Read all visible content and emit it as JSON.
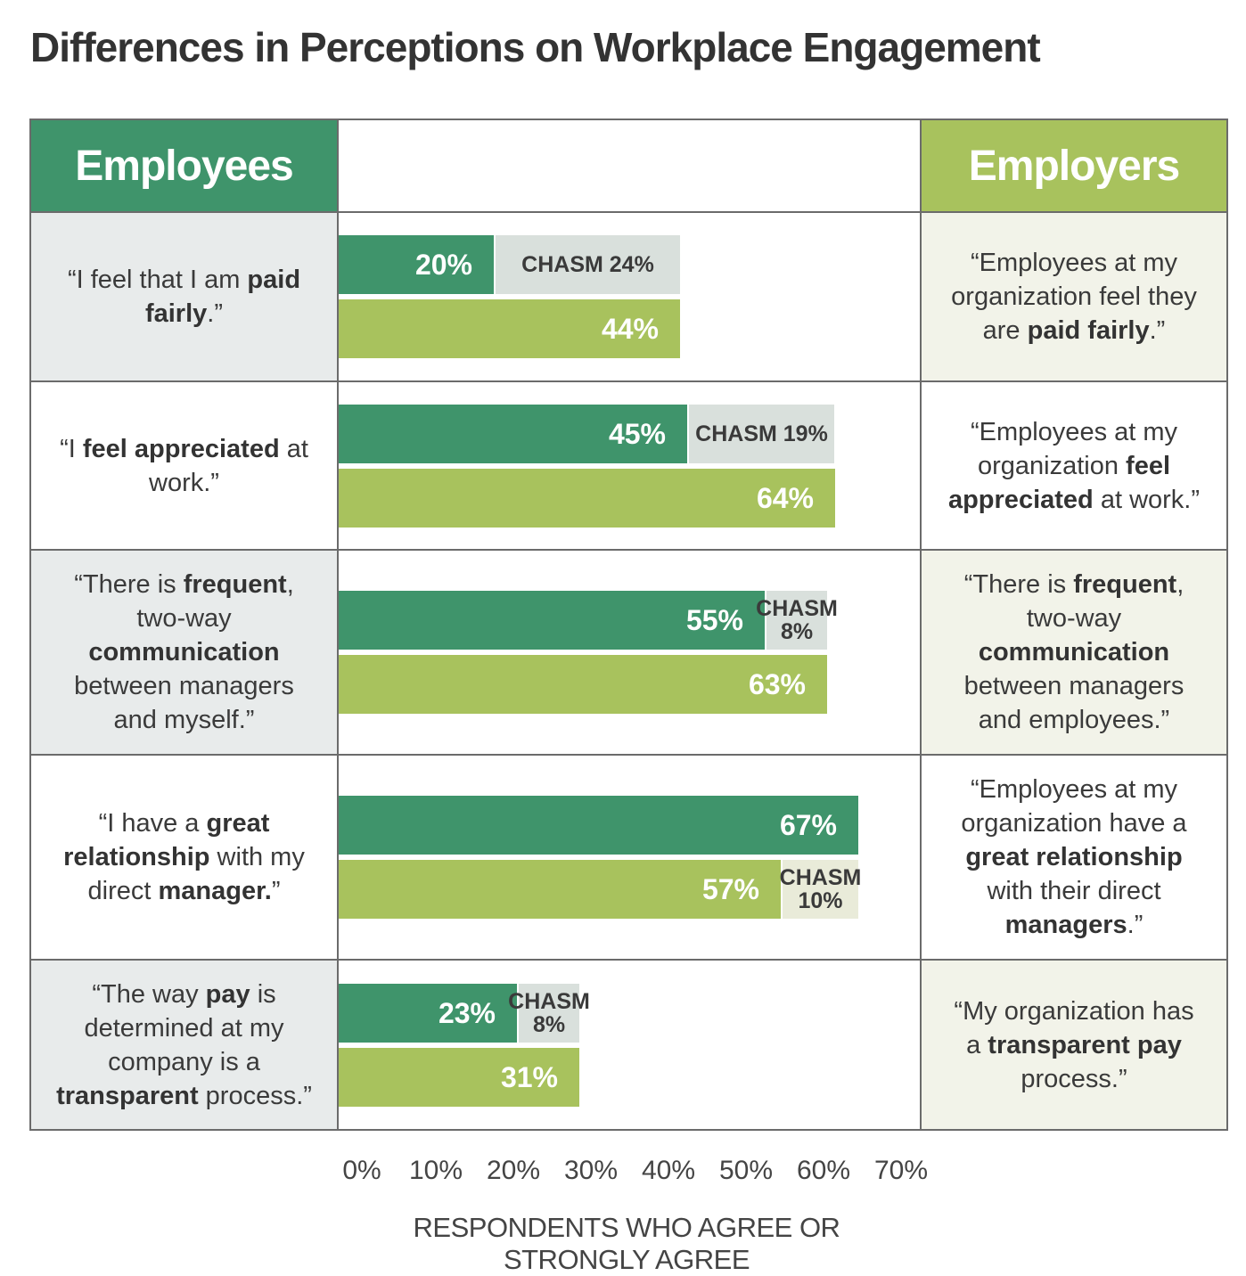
{
  "title": "Differences in Perceptions on Workplace Engagement",
  "headers": {
    "left": "Employees",
    "right": "Employers"
  },
  "colors": {
    "employees": "#3f946b",
    "employers": "#a8c25d",
    "chasm": "#d9e0dc"
  },
  "chart_data": {
    "type": "bar",
    "orientation": "horizontal",
    "xlabel": "RESPONDENTS WHO AGREE OR STRONGLY AGREE",
    "xlim": [
      0,
      70
    ],
    "xticks": [
      "0%",
      "10%",
      "20%",
      "30%",
      "40%",
      "50%",
      "60%",
      "70%"
    ],
    "series": [
      {
        "name": "Employees",
        "values": [
          20,
          45,
          55,
          67,
          23
        ]
      },
      {
        "name": "Employers",
        "values": [
          44,
          64,
          63,
          57,
          31
        ]
      }
    ],
    "rows": [
      {
        "employee": [
          [
            "“I feel that I am ",
            false
          ],
          [
            "paid fairly",
            true
          ],
          [
            ".”",
            false
          ]
        ],
        "employer": [
          [
            "“Employees at my organization feel they are ",
            false
          ],
          [
            "paid fairly",
            true
          ],
          [
            ".”",
            false
          ]
        ],
        "emp_value": 20,
        "emp_label": "20%",
        "emr_value": 44,
        "emr_label": "44%",
        "chasm_on": "employees",
        "chasm_lines": [
          "CHASM 24%"
        ]
      },
      {
        "employee": [
          [
            "“I ",
            false
          ],
          [
            "feel appreciated",
            true
          ],
          [
            " at work.”",
            false
          ]
        ],
        "employer": [
          [
            "“Employees at my organization ",
            false
          ],
          [
            "feel appreciated",
            true
          ],
          [
            " at work.”",
            false
          ]
        ],
        "emp_value": 45,
        "emp_label": "45%",
        "emr_value": 64,
        "emr_label": "64%",
        "chasm_on": "employees",
        "chasm_lines": [
          "CHASM 19%"
        ]
      },
      {
        "employee": [
          [
            "“There is ",
            false
          ],
          [
            "frequent",
            true
          ],
          [
            ", two-way ",
            false
          ],
          [
            "communication",
            true
          ],
          [
            " between managers and myself.”",
            false
          ]
        ],
        "employer": [
          [
            "“There is ",
            false
          ],
          [
            "frequent",
            true
          ],
          [
            ", two-way ",
            false
          ],
          [
            "communication",
            true
          ],
          [
            " between managers and employees.”",
            false
          ]
        ],
        "emp_value": 55,
        "emp_label": "55%",
        "emr_value": 63,
        "emr_label": "63%",
        "chasm_on": "employees",
        "chasm_lines": [
          "CHASM",
          "8%"
        ]
      },
      {
        "employee": [
          [
            "“I have a ",
            false
          ],
          [
            "great relationship",
            true
          ],
          [
            " with my direct ",
            false
          ],
          [
            "manager.",
            true
          ],
          [
            "”",
            false
          ]
        ],
        "employer": [
          [
            "“Employees at my organization have a ",
            false
          ],
          [
            "great relationship",
            true
          ],
          [
            " with their direct ",
            false
          ],
          [
            "managers",
            true
          ],
          [
            ".”",
            false
          ]
        ],
        "emp_value": 67,
        "emp_label": "67%",
        "emr_value": 57,
        "emr_label": "57%",
        "chasm_on": "employers",
        "chasm_lines": [
          "CHASM",
          "10%"
        ]
      },
      {
        "employee": [
          [
            "“The way ",
            false
          ],
          [
            "pay",
            true
          ],
          [
            " is determined at my company is a ",
            false
          ],
          [
            "transparent",
            true
          ],
          [
            " process.”",
            false
          ]
        ],
        "employer": [
          [
            "“My organization has a ",
            false
          ],
          [
            "transparent pay",
            true
          ],
          [
            " process.”",
            false
          ]
        ],
        "emp_value": 23,
        "emp_label": "23%",
        "emr_value": 31,
        "emr_label": "31%",
        "chasm_on": "employees",
        "chasm_lines": [
          "CHASM",
          "8%"
        ]
      }
    ]
  }
}
